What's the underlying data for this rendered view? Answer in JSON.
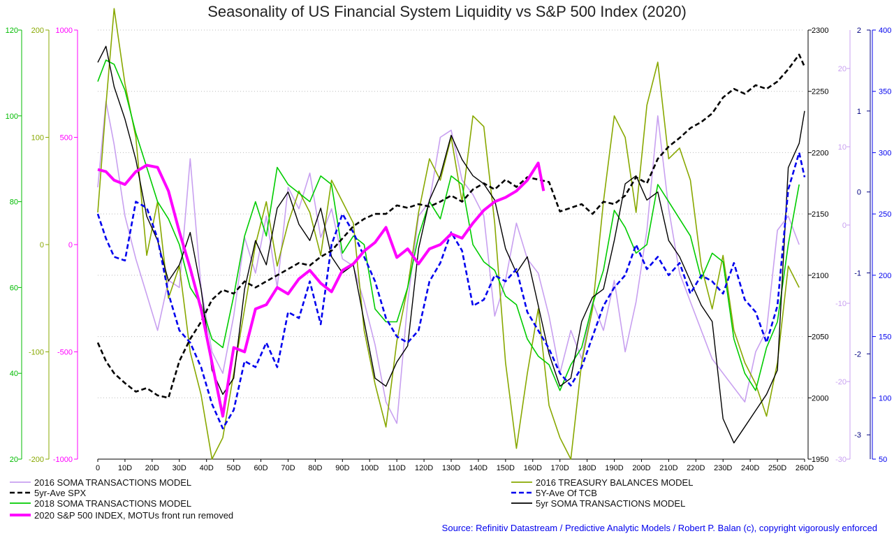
{
  "title": "Seasonality of US Financial System Liquidity vs S&P 500 Index (2020)",
  "source": "Source: Refinitiv Datastream / Predictive Analytic Models / Robert P. Balan (c), copyright vigorously enforced",
  "colors": {
    "soma2016": "#c8a0f0",
    "spx5yr": "#000000",
    "soma2018": "#00cc00",
    "sp2020": "#ff00ff",
    "tb2016": "#88a800",
    "tcb5y": "#0000ee",
    "soma5yr": "#000000",
    "grid": "#bbbbbb"
  },
  "chart_data": {
    "type": "line",
    "title": "Seasonality of US Financial System Liquidity vs S&P 500 Index (2020)",
    "x_ticks": [
      "0",
      "10D",
      "20D",
      "30D",
      "40D",
      "50D",
      "60D",
      "70D",
      "80D",
      "90D",
      "100D",
      "110D",
      "120D",
      "130D",
      "140D",
      "150D",
      "160D",
      "170D",
      "180D",
      "190D",
      "200D",
      "210D",
      "220D",
      "230D",
      "240D",
      "250D",
      "260D"
    ],
    "xlim": [
      0,
      260
    ],
    "axes": {
      "left_green": {
        "ticks": [
          "120",
          "100",
          "80",
          "60",
          "40",
          "20"
        ],
        "range": [
          20,
          120
        ]
      },
      "left_olive": {
        "ticks": [
          "200",
          "100",
          "0",
          "-100",
          "-200"
        ],
        "range": [
          -200,
          200
        ]
      },
      "left_magenta": {
        "ticks": [
          "1000",
          "500",
          "0",
          "-500",
          "-1000"
        ],
        "range": [
          -1000,
          1000
        ]
      },
      "right_black": {
        "ticks": [
          "2300",
          "2250",
          "2200",
          "2150",
          "2100",
          "2050",
          "2000",
          "1950"
        ],
        "range": [
          1950,
          2300
        ]
      },
      "right_lavender": {
        "ticks": [
          "20",
          "10",
          "0",
          "-10",
          "-20",
          "-30"
        ],
        "range": [
          -30,
          30
        ]
      },
      "right_navy": {
        "ticks": [
          "2",
          "1",
          "0",
          "-1",
          "-2",
          "-3"
        ],
        "range": [
          -3.3,
          2
        ]
      },
      "right_blue": {
        "ticks": [
          "400",
          "350",
          "300",
          "250",
          "200",
          "150",
          "100",
          "50"
        ],
        "range": [
          50,
          400
        ]
      }
    },
    "grid": true,
    "legend_position": "bottom",
    "series": [
      {
        "name": "2016 SOMA TRANSACTIONS MODEL",
        "color": "#c8a0f0",
        "style": "solid",
        "axis": "right_lavender",
        "x": [
          0,
          3,
          6,
          10,
          14,
          18,
          22,
          26,
          30,
          34,
          38,
          42,
          46,
          50,
          54,
          58,
          62,
          66,
          70,
          74,
          78,
          82,
          86,
          90,
          94,
          98,
          102,
          106,
          110,
          114,
          118,
          122,
          126,
          130,
          134,
          138,
          142,
          146,
          150,
          154,
          158,
          162,
          166,
          170,
          174,
          178,
          182,
          186,
          190,
          194,
          198,
          202,
          206,
          210,
          214,
          218,
          222,
          226,
          230,
          234,
          238,
          242,
          246,
          250,
          254,
          258
        ],
        "values": [
          8,
          20,
          14,
          4,
          -2,
          -7,
          -12,
          -5,
          -6,
          12,
          -6,
          -15,
          -18,
          -10,
          1,
          -4,
          4,
          -6,
          8,
          5,
          10,
          1,
          5,
          -2,
          -3,
          -8,
          -14,
          -22,
          -25,
          -8,
          4,
          6,
          15,
          16,
          9,
          7,
          4,
          -10,
          -5,
          3,
          -2,
          -4,
          -10,
          -18,
          -12,
          -16,
          -8,
          -12,
          -5,
          -15,
          -8,
          2,
          18,
          5,
          -4,
          -8,
          -12,
          -16,
          -18,
          -20,
          -22,
          -15,
          -12,
          2,
          4,
          0
        ]
      },
      {
        "name": "5yr-Ave SPX",
        "color": "#000000",
        "style": "dashed",
        "axis": "right_black",
        "x": [
          0,
          3,
          6,
          10,
          14,
          18,
          22,
          26,
          30,
          34,
          38,
          42,
          46,
          50,
          54,
          58,
          62,
          66,
          70,
          74,
          78,
          82,
          86,
          90,
          94,
          98,
          102,
          106,
          110,
          114,
          118,
          122,
          126,
          130,
          134,
          138,
          142,
          146,
          150,
          154,
          158,
          162,
          166,
          170,
          174,
          178,
          182,
          186,
          190,
          194,
          198,
          202,
          206,
          210,
          214,
          218,
          222,
          226,
          230,
          234,
          238,
          242,
          246,
          250,
          254,
          258,
          260
        ],
        "values": [
          2045,
          2030,
          2020,
          2012,
          2005,
          2008,
          2002,
          2000,
          2030,
          2048,
          2062,
          2080,
          2088,
          2085,
          2095,
          2090,
          2095,
          2100,
          2105,
          2110,
          2108,
          2115,
          2120,
          2130,
          2140,
          2146,
          2150,
          2150,
          2157,
          2155,
          2158,
          2156,
          2160,
          2165,
          2160,
          2170,
          2175,
          2170,
          2178,
          2172,
          2180,
          2178,
          2176,
          2152,
          2155,
          2158,
          2150,
          2160,
          2158,
          2165,
          2180,
          2175,
          2195,
          2205,
          2212,
          2220,
          2225,
          2232,
          2245,
          2252,
          2248,
          2255,
          2252,
          2258,
          2268,
          2280,
          2270
        ]
      },
      {
        "name": "2018 SOMA TRANSACTIONS MODEL",
        "color": "#00cc00",
        "style": "solid",
        "axis": "left_green",
        "x": [
          0,
          3,
          6,
          10,
          14,
          18,
          22,
          26,
          30,
          34,
          38,
          42,
          46,
          50,
          54,
          58,
          62,
          66,
          70,
          74,
          78,
          82,
          86,
          90,
          94,
          98,
          102,
          106,
          110,
          114,
          118,
          122,
          126,
          130,
          134,
          138,
          142,
          146,
          150,
          154,
          158,
          162,
          166,
          170,
          174,
          178,
          182,
          186,
          190,
          194,
          198,
          202,
          206,
          210,
          214,
          218,
          222,
          226,
          230,
          234,
          238,
          242,
          246,
          250,
          254,
          258
        ],
        "values": [
          108,
          113,
          112,
          106,
          96,
          88,
          80,
          76,
          70,
          60,
          56,
          48,
          46,
          58,
          72,
          80,
          72,
          88,
          84,
          82,
          80,
          86,
          84,
          68,
          72,
          70,
          55,
          52,
          52,
          60,
          72,
          80,
          76,
          86,
          84,
          70,
          66,
          64,
          58,
          56,
          48,
          44,
          42,
          36,
          42,
          46,
          56,
          64,
          78,
          74,
          68,
          70,
          84,
          80,
          76,
          72,
          62,
          68,
          66,
          48,
          40,
          36,
          46,
          52,
          70,
          84
        ]
      },
      {
        "name": "2020 S&P 500 INDEX, MOTUs front run removed",
        "color": "#ff00ff",
        "style": "solid",
        "axis": "left_magenta",
        "x": [
          0,
          3,
          6,
          10,
          14,
          18,
          22,
          26,
          30,
          34,
          38,
          42,
          46,
          50,
          54,
          58,
          62,
          66,
          70,
          74,
          78,
          82,
          86,
          90,
          94,
          98,
          102,
          106,
          110,
          114,
          118,
          122,
          126,
          130,
          134,
          138,
          142,
          146,
          150,
          154,
          158,
          162,
          164
        ],
        "values": [
          350,
          340,
          300,
          280,
          340,
          370,
          360,
          250,
          60,
          -110,
          -300,
          -550,
          -800,
          -480,
          -500,
          -300,
          -280,
          -200,
          -230,
          -160,
          -120,
          -180,
          -220,
          -120,
          -90,
          -30,
          10,
          80,
          -60,
          -20,
          -90,
          -20,
          0,
          50,
          30,
          100,
          160,
          200,
          220,
          250,
          300,
          380,
          250
        ]
      },
      {
        "name": "2016 TREASURY BALANCES MODEL",
        "color": "#88a800",
        "style": "solid",
        "axis": "left_olive",
        "x": [
          0,
          3,
          6,
          10,
          14,
          18,
          22,
          26,
          30,
          34,
          38,
          42,
          46,
          50,
          54,
          58,
          62,
          66,
          70,
          74,
          78,
          82,
          86,
          90,
          94,
          98,
          102,
          106,
          110,
          114,
          118,
          122,
          126,
          130,
          134,
          138,
          142,
          146,
          150,
          154,
          158,
          162,
          166,
          170,
          174,
          178,
          182,
          186,
          190,
          194,
          198,
          202,
          206,
          210,
          214,
          218,
          222,
          226,
          230,
          234,
          238,
          242,
          246,
          250,
          254,
          258
        ],
        "values": [
          30,
          130,
          220,
          150,
          100,
          -10,
          40,
          -50,
          -20,
          -100,
          -140,
          -200,
          -180,
          -120,
          -60,
          0,
          40,
          -20,
          20,
          50,
          30,
          -10,
          60,
          40,
          20,
          -80,
          -130,
          -170,
          -90,
          -40,
          30,
          80,
          60,
          100,
          40,
          120,
          110,
          20,
          -110,
          -190,
          -120,
          -60,
          -150,
          -180,
          -200,
          -110,
          -60,
          40,
          120,
          100,
          30,
          130,
          170,
          80,
          90,
          60,
          -20,
          -60,
          -10,
          -80,
          -110,
          -130,
          -160,
          -110,
          -20,
          -40
        ]
      },
      {
        "name": "5Y-Ave Of TCB",
        "color": "#0000ee",
        "style": "dashed",
        "axis": "right_blue",
        "x": [
          0,
          3,
          6,
          10,
          14,
          18,
          22,
          26,
          30,
          34,
          38,
          42,
          46,
          50,
          54,
          58,
          62,
          66,
          70,
          74,
          78,
          82,
          86,
          90,
          94,
          98,
          102,
          106,
          110,
          114,
          118,
          122,
          126,
          130,
          134,
          138,
          142,
          146,
          150,
          154,
          158,
          162,
          166,
          170,
          174,
          178,
          182,
          186,
          190,
          194,
          198,
          202,
          206,
          210,
          214,
          218,
          222,
          226,
          230,
          234,
          238,
          242,
          246,
          250,
          254,
          258,
          260
        ],
        "values": [
          250,
          230,
          215,
          212,
          260,
          255,
          230,
          185,
          155,
          145,
          125,
          95,
          75,
          90,
          130,
          125,
          145,
          125,
          170,
          165,
          195,
          160,
          225,
          250,
          235,
          215,
          195,
          165,
          150,
          145,
          155,
          195,
          210,
          235,
          220,
          175,
          180,
          200,
          195,
          205,
          170,
          155,
          140,
          120,
          110,
          125,
          150,
          175,
          190,
          200,
          225,
          205,
          215,
          200,
          210,
          185,
          200,
          195,
          185,
          210,
          180,
          170,
          145,
          175,
          270,
          300,
          280
        ]
      },
      {
        "name": "5yr SOMA TRANSACTIONS MODEL",
        "color": "#000000",
        "style": "solid",
        "axis": "right_navy",
        "x": [
          0,
          3,
          6,
          10,
          14,
          18,
          22,
          26,
          30,
          34,
          38,
          42,
          46,
          50,
          54,
          58,
          62,
          66,
          70,
          74,
          78,
          82,
          86,
          90,
          94,
          98,
          102,
          106,
          110,
          114,
          118,
          122,
          126,
          130,
          134,
          138,
          142,
          146,
          150,
          154,
          158,
          162,
          166,
          170,
          174,
          178,
          182,
          186,
          190,
          194,
          198,
          202,
          206,
          210,
          214,
          218,
          222,
          226,
          230,
          234,
          238,
          242,
          246,
          250,
          254,
          258,
          260
        ],
        "values": [
          1.6,
          1.8,
          1.3,
          0.9,
          0.4,
          -0.3,
          -0.6,
          -1.1,
          -0.9,
          -0.5,
          -1.2,
          -2.2,
          -2.5,
          -2.3,
          -1.2,
          -0.6,
          -0.9,
          -0.2,
          0,
          -0.4,
          -0.6,
          -0.2,
          -0.8,
          -1.0,
          -0.9,
          -1.6,
          -2.3,
          -2.4,
          -2.1,
          -1.9,
          -0.7,
          -0.1,
          0.2,
          0.7,
          0.4,
          0.2,
          0.1,
          -0.1,
          -0.7,
          -1.0,
          -0.8,
          -1.4,
          -2.0,
          -2.4,
          -2.3,
          -1.6,
          -1.3,
          -1.2,
          -0.6,
          0.1,
          0.2,
          -0.1,
          0,
          -0.6,
          -0.8,
          -1.1,
          -1.4,
          -1.6,
          -2.8,
          -3.1,
          -2.9,
          -2.7,
          -2.5,
          -2.2,
          0.3,
          0.6,
          1.0
        ]
      }
    ]
  }
}
